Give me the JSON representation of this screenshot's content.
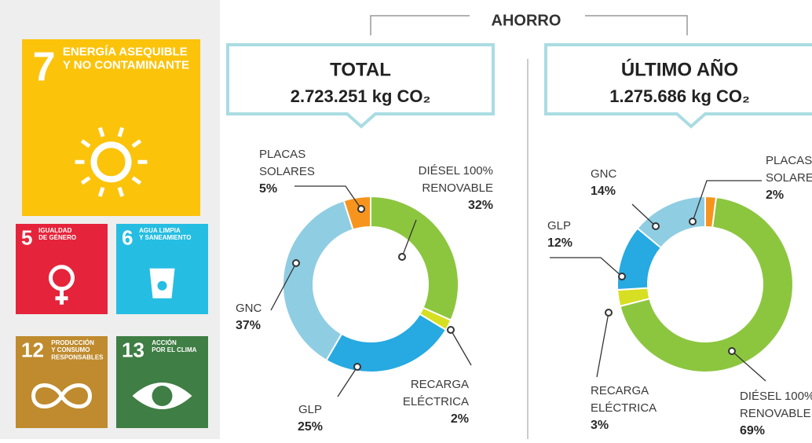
{
  "header": "AHORRO",
  "sdgs": [
    {
      "number": "7",
      "lines": [
        "ENERGÍA ASEQUIBLE",
        "Y NO CONTAMINANTE"
      ],
      "color": "#fcc30b"
    },
    {
      "number": "5",
      "lines": [
        "IGUALDAD",
        "DE GÉNERO"
      ],
      "color": "#e5243b"
    },
    {
      "number": "6",
      "lines": [
        "AGUA LIMPIA",
        "Y SANEAMIENTO"
      ],
      "color": "#26bde2"
    },
    {
      "number": "12",
      "lines": [
        "PRODUCCIÓN",
        "Y CONSUMO",
        "RESPONSABLES"
      ],
      "color": "#bf8b2e"
    },
    {
      "number": "13",
      "lines": [
        "ACCIÓN",
        "POR EL CLIMA"
      ],
      "color": "#3f7e44"
    }
  ],
  "chart_data": [
    {
      "type": "donut",
      "title": "TOTAL",
      "subtitle": "2.723.251 kg CO₂",
      "categories": [
        [
          "DIÉSEL 100%",
          "RENOVABLE"
        ],
        [
          "RECARGA",
          "ELÉCTRICA"
        ],
        [
          "GLP"
        ],
        [
          "GNC"
        ],
        [
          "PLACAS",
          "SOLARES"
        ]
      ],
      "values": [
        32,
        2,
        25,
        37,
        5
      ],
      "value_labels": [
        "32%",
        "2%",
        "25%",
        "37%",
        "5%"
      ],
      "colors": [
        "#8cc63f",
        "#d7df23",
        "#27a9e1",
        "#8fcde3",
        "#f7941d"
      ]
    },
    {
      "type": "donut",
      "title": "ÚLTIMO AÑO",
      "subtitle": "1.275.686 kg CO₂",
      "categories": [
        [
          "PLACAS",
          "SOLARES"
        ],
        [
          "DIÉSEL 100%",
          "RENOVABLE"
        ],
        [
          "RECARGA",
          "ELÉCTRICA"
        ],
        [
          "GLP"
        ],
        [
          "GNC"
        ]
      ],
      "values": [
        2,
        69,
        3,
        12,
        14
      ],
      "value_labels": [
        "2%",
        "69%",
        "3%",
        "12%",
        "14%"
      ],
      "colors": [
        "#f7941d",
        "#8cc63f",
        "#d7df23",
        "#27a9e1",
        "#8fcde3"
      ]
    }
  ]
}
